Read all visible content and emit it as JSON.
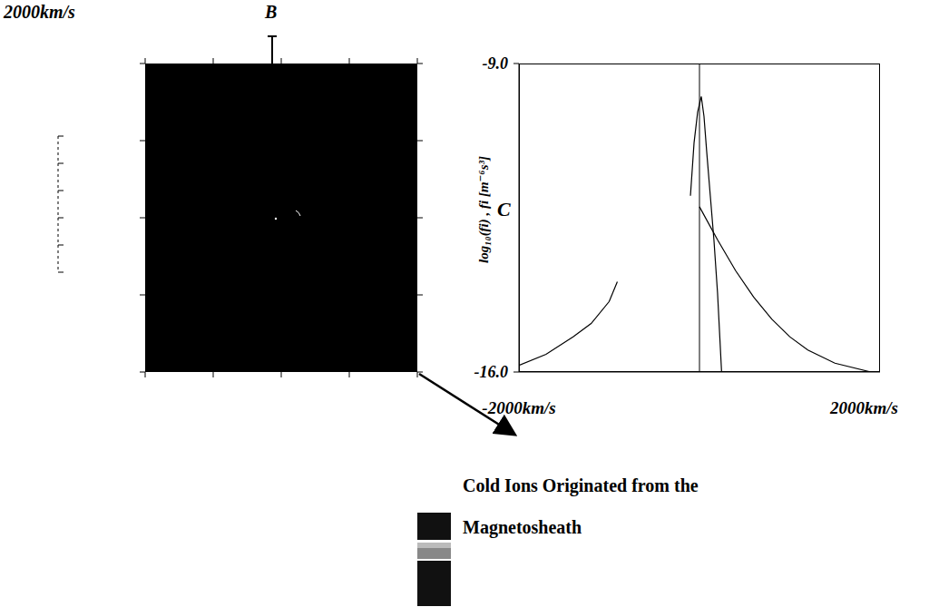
{
  "chart_data": {
    "type": "line",
    "panel_label": "C",
    "y_label": "log₁₀(fi) , fi [m⁻⁶s³]",
    "xlim": [
      -2000,
      2000
    ],
    "xticks": [
      {
        "value": -2000,
        "label": "-2000km/s"
      },
      {
        "value": 2000,
        "label": "2000km/s"
      }
    ],
    "ylim": [
      -16,
      -9
    ],
    "yticks": [
      {
        "value": -16,
        "label": "-16.0"
      },
      {
        "value": -9,
        "label": "-9.0"
      }
    ],
    "reference_x": 0,
    "series": [
      {
        "color": "#000000",
        "x": [
          -100,
          -60,
          -20,
          20,
          50,
          80,
          120,
          160,
          200,
          230,
          245
        ],
        "values": [
          -12.0,
          -10.8,
          -10.1,
          -9.75,
          -10.2,
          -11.0,
          -12.0,
          -13.0,
          -14.2,
          -15.4,
          -16.0
        ]
      },
      {
        "color": "#000000",
        "x": [
          -2000,
          -1700,
          -1400,
          -1200,
          -1000,
          -910,
          -450,
          0,
          200,
          400,
          600,
          800,
          1000,
          1200,
          1500,
          1900
        ],
        "values": [
          -15.85,
          -15.6,
          -15.2,
          -14.9,
          -14.4,
          -13.95,
          null,
          -12.25,
          -13.0,
          -13.7,
          -14.3,
          -14.8,
          -15.2,
          -15.5,
          -15.8,
          -16.0
        ]
      }
    ]
  },
  "panel_b": {
    "panel_label": "B",
    "scale_label": "2000km/s"
  },
  "annotation": "Cold Ions Originated from the Magnetosheath"
}
